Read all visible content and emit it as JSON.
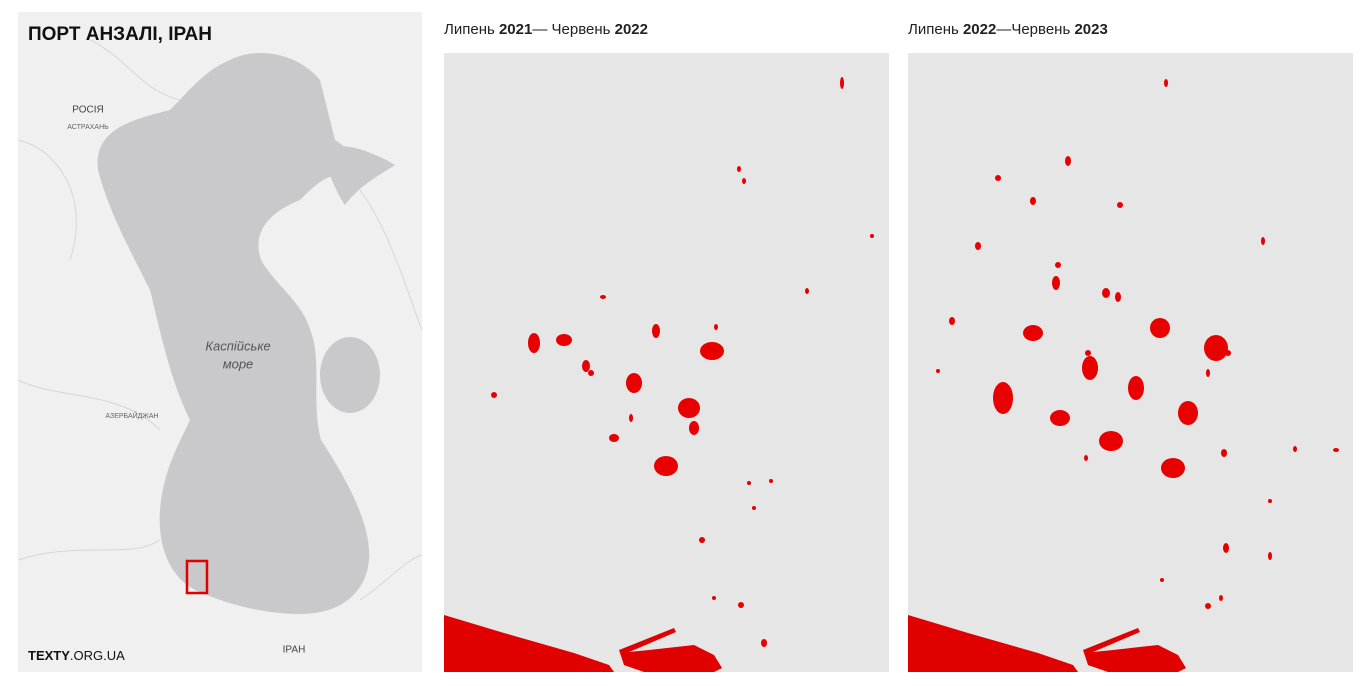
{
  "map": {
    "title": "ПОРТ АНЗАЛІ, ІРАН",
    "labels": {
      "russia": "РОСІЯ",
      "astrakhan": "АСТРАХАНЬ",
      "sea_line1": "Каспійське",
      "sea_line2": "море",
      "azerbaijan": "АЗЕРБАЙДЖАН",
      "iran": "ІРАН"
    },
    "logo": {
      "bold": "TEXTY",
      "rest": ".ORG.UA"
    }
  },
  "panels": [
    {
      "title": {
        "start_month": "Липень ",
        "start_year": "2021",
        "separator": "— Червень ",
        "end_year": "2022"
      }
    },
    {
      "title": {
        "start_month": "Липень ",
        "start_year": "2022",
        "separator": "—Червень ",
        "end_year": "2023"
      }
    }
  ]
}
